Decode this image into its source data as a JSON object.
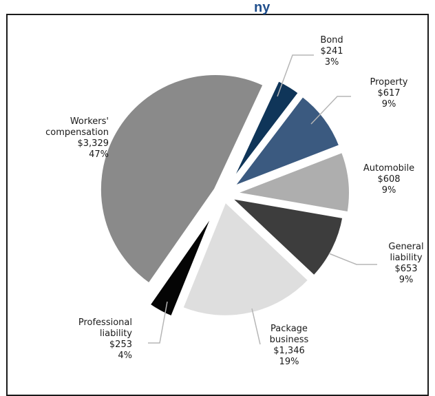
{
  "top_fragment": "ny",
  "chart_data": {
    "type": "pie",
    "title": "",
    "slices": [
      {
        "label_lines": [
          "Bond",
          "$241",
          "3%"
        ],
        "value": 241,
        "percent": 3,
        "color": "#0f3559"
      },
      {
        "label_lines": [
          "Property",
          "$617",
          "9%"
        ],
        "value": 617,
        "percent": 9,
        "color": "#3b5a80"
      },
      {
        "label_lines": [
          "Automobile",
          "$608",
          "9%"
        ],
        "value": 608,
        "percent": 9,
        "color": "#aeaeae"
      },
      {
        "label_lines": [
          "General",
          "liability",
          "$653",
          "9%"
        ],
        "value": 653,
        "percent": 9,
        "color": "#3d3d3d"
      },
      {
        "label_lines": [
          "Package",
          "business",
          "$1,346",
          "19%"
        ],
        "value": 1346,
        "percent": 19,
        "color": "#dedede"
      },
      {
        "label_lines": [
          "Professional",
          "liability",
          "$253",
          "4%"
        ],
        "value": 253,
        "percent": 4,
        "color": "#050505"
      },
      {
        "label_lines": [
          "Workers'",
          "compensation",
          "$3,329",
          "47%"
        ],
        "value": 3329,
        "percent": 47,
        "color": "#8a8a8a"
      }
    ]
  }
}
